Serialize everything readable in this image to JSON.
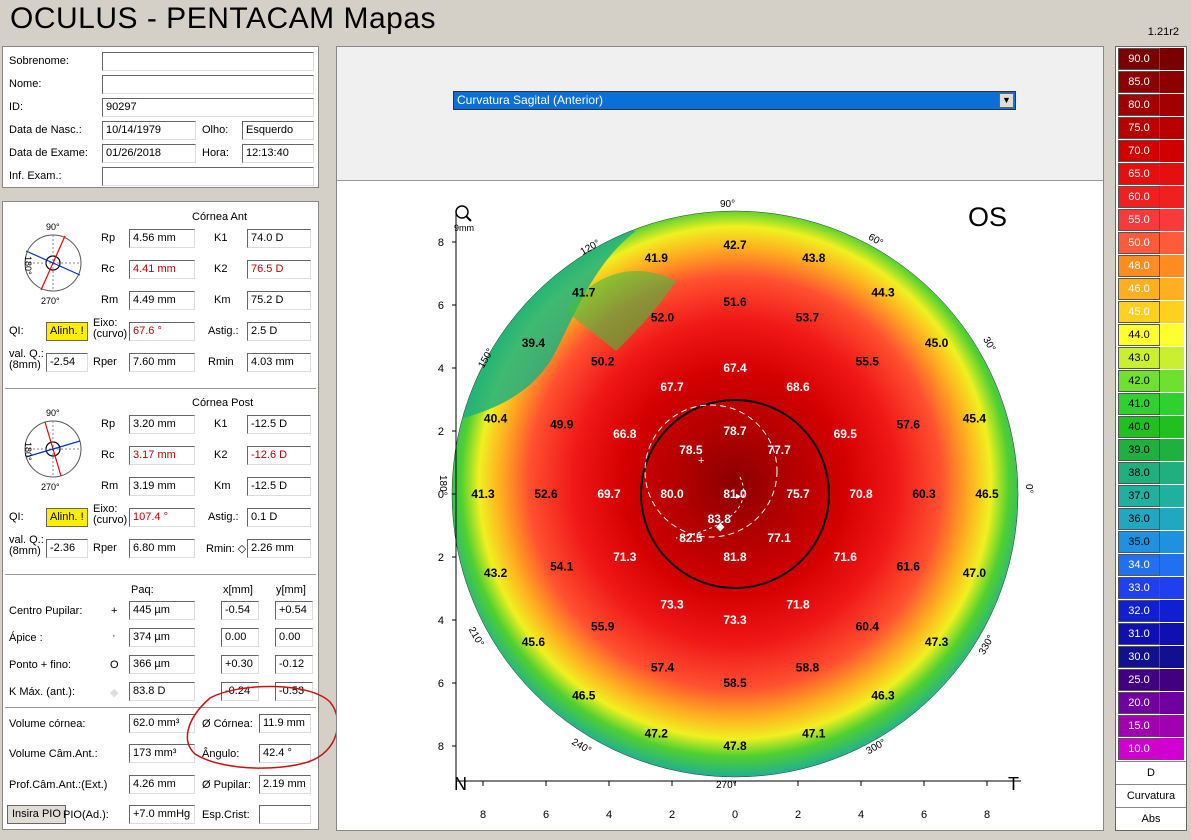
{
  "header": {
    "title": "OCULUS  -  PENTACAM   Mapas",
    "version": "1.21r2"
  },
  "patient": {
    "sobrenome_label": "Sobrenome:",
    "sobrenome": "",
    "nome_label": "Nome:",
    "nome": "",
    "id_label": "ID:",
    "id": "90297",
    "nasc_label": "Data de Nasc.:",
    "nasc": "10/14/1979",
    "olho_label": "Olho:",
    "olho": "Esquerdo",
    "exame_label": "Data de Exame:",
    "exame": "01/26/2018",
    "hora_label": "Hora:",
    "hora": "12:13:40",
    "inf_label": "Inf. Exam.:",
    "inf": ""
  },
  "ant": {
    "title": "Córnea Ant",
    "rp_label": "Rp",
    "rp": "4.56 mm",
    "rc_label": "Rc",
    "rc": "4.41 mm",
    "rm_label": "Rm",
    "rm": "4.49 mm",
    "k1_label": "K1",
    "k1": "74.0 D",
    "k2_label": "K2",
    "k2": "76.5 D",
    "km_label": "Km",
    "km": "75.2 D",
    "ql_label": "QI:",
    "ql": "Alinh. !",
    "eixo_label": "Eixo:\n(curvo)",
    "eixo": "67.6 °",
    "astig_label": "Astig.:",
    "astig": "2.5 D",
    "valq_label": "val. Q.:\n(8mm)",
    "valq": "-2.54",
    "rper_label": "Rper",
    "rper": "7.60 mm",
    "rmin_label": "Rmin",
    "rmin": "4.03 mm",
    "deg90": "90°",
    "deg180": "180°",
    "deg270": "270°"
  },
  "post": {
    "title": "Córnea Post",
    "rp_label": "Rp",
    "rp": "3.20 mm",
    "rc_label": "Rc",
    "rc": "3.17 mm",
    "rm_label": "Rm",
    "rm": "3.19 mm",
    "k1_label": "K1",
    "k1": "-12.5 D",
    "k2_label": "K2",
    "k2": "-12.6 D",
    "km_label": "Km",
    "km": "-12.5 D",
    "ql_label": "QI:",
    "ql": "Alinh. !",
    "eixo_label": "Eixo:\n(curvo)",
    "eixo": "107.4 °",
    "astig_label": "Astig.:",
    "astig": "0.1 D",
    "valq_label": "val. Q.:\n(8mm)",
    "valq": "-2.36",
    "rper_label": "Rper",
    "rper": "6.80 mm",
    "rmin_label": "Rmin: ◇",
    "rmin": "2.26 mm",
    "deg90": "90°",
    "deg180": "180°",
    "deg270": "270°"
  },
  "pachy": {
    "pag_head": "Paq:",
    "x_head": "x[mm]",
    "y_head": "y[mm]",
    "rows": [
      {
        "label": "Centro Pupilar:",
        "sym": "+",
        "paq": "445 µm",
        "x": "-0.54",
        "y": "+0.54"
      },
      {
        "label": "Ápice :",
        "sym": "·",
        "paq": "374 µm",
        "x": "0.00",
        "y": "0.00"
      },
      {
        "label": "Ponto + fino:",
        "sym": "O",
        "paq": "366 µm",
        "x": "+0.30",
        "y": "-0.12"
      },
      {
        "label": "K Máx. (ant.):",
        "sym": "◆",
        "paq": "83.8 D",
        "x": "-0.24",
        "y": "-0.53"
      }
    ]
  },
  "volume": {
    "vol_label": "Volume córnea:",
    "vol": "62.0 mm³",
    "diam_label": "Ø Córnea:",
    "diam": "11.9 mm",
    "cam_label": "Volume Câm.Ant.:",
    "cam": "173 mm³",
    "ang_label": "Ângulo:",
    "ang": "42.4 °",
    "prof_label": "Prof.Câm.Ant.:(Ext.)",
    "prof": "4.26 mm",
    "pup_label": "Ø Pupilar:",
    "pup": "2.19 mm",
    "insira_label": "Insira PIO",
    "pio_label": "PIO(Ad.):",
    "pio": "+7.0 mmHg",
    "esp_label": "Esp.Crist:",
    "esp": ""
  },
  "map": {
    "selector": "Curvatura Sagital (Anterior)",
    "eye": "OS",
    "zoom_label": "9mm",
    "nasal": "N",
    "temporal": "T",
    "deg": {
      "d90": "90°",
      "d270": "270°",
      "d0": "0°",
      "d180": "180°",
      "d120": "120°",
      "d60": "60°",
      "d150": "150°",
      "d30": "30°",
      "d210": "210°",
      "d330": "330°",
      "d240": "240°",
      "d300": "300°"
    },
    "yticks": [
      "8",
      "6",
      "4",
      "2",
      "0",
      "2",
      "4",
      "6",
      "8"
    ],
    "xticks": [
      "8",
      "6",
      "4",
      "2",
      "0",
      "2",
      "4",
      "6",
      "8"
    ],
    "values": [
      {
        "v": "42.7",
        "x": 0,
        "y": 7.9
      },
      {
        "v": "41.9",
        "x": -2.5,
        "y": 7.5
      },
      {
        "v": "43.8",
        "x": 2.5,
        "y": 7.5
      },
      {
        "v": "41.7",
        "x": -4.8,
        "y": 6.4
      },
      {
        "v": "44.3",
        "x": 4.7,
        "y": 6.4
      },
      {
        "v": "51.6",
        "x": 0,
        "y": 6.1
      },
      {
        "v": "52.0",
        "x": -2.3,
        "y": 5.6
      },
      {
        "v": "53.7",
        "x": 2.3,
        "y": 5.6
      },
      {
        "v": "39.4",
        "x": -6.4,
        "y": 4.8
      },
      {
        "v": "45.0",
        "x": 6.4,
        "y": 4.8
      },
      {
        "v": "50.2",
        "x": -4.2,
        "y": 4.2
      },
      {
        "v": "55.5",
        "x": 4.2,
        "y": 4.2
      },
      {
        "v": "67.4",
        "x": 0,
        "y": 4.0
      },
      {
        "v": "67.7",
        "x": -2.0,
        "y": 3.4
      },
      {
        "v": "68.6",
        "x": 2.0,
        "y": 3.4
      },
      {
        "v": "40.4",
        "x": -7.6,
        "y": 2.4
      },
      {
        "v": "45.4",
        "x": 7.6,
        "y": 2.4
      },
      {
        "v": "49.9",
        "x": -5.5,
        "y": 2.2
      },
      {
        "v": "57.6",
        "x": 5.5,
        "y": 2.2
      },
      {
        "v": "66.8",
        "x": -3.5,
        "y": 1.9
      },
      {
        "v": "69.5",
        "x": 3.5,
        "y": 1.9
      },
      {
        "v": "78.7",
        "x": 0,
        "y": 2.0
      },
      {
        "v": "78.5",
        "x": -1.4,
        "y": 1.4
      },
      {
        "v": "77.7",
        "x": 1.4,
        "y": 1.4
      },
      {
        "v": "41.3",
        "x": -8.0,
        "y": 0
      },
      {
        "v": "52.6",
        "x": -6.0,
        "y": 0
      },
      {
        "v": "69.7",
        "x": -4.0,
        "y": 0
      },
      {
        "v": "80.0",
        "x": -2.0,
        "y": 0
      },
      {
        "v": "81.0",
        "x": 0,
        "y": 0
      },
      {
        "v": "75.7",
        "x": 2.0,
        "y": 0
      },
      {
        "v": "70.8",
        "x": 4.0,
        "y": 0
      },
      {
        "v": "60.3",
        "x": 6.0,
        "y": 0
      },
      {
        "v": "46.5",
        "x": 8.0,
        "y": 0
      },
      {
        "v": "83.8",
        "x": -0.5,
        "y": -0.8
      },
      {
        "v": "82.5",
        "x": -1.4,
        "y": -1.4
      },
      {
        "v": "77.1",
        "x": 1.4,
        "y": -1.4
      },
      {
        "v": "71.3",
        "x": -3.5,
        "y": -2.0
      },
      {
        "v": "81.8",
        "x": 0,
        "y": -2.0
      },
      {
        "v": "71.6",
        "x": 3.5,
        "y": -2.0
      },
      {
        "v": "43.2",
        "x": -7.6,
        "y": -2.5
      },
      {
        "v": "54.1",
        "x": -5.5,
        "y": -2.3
      },
      {
        "v": "61.6",
        "x": 5.5,
        "y": -2.3
      },
      {
        "v": "47.0",
        "x": 7.6,
        "y": -2.5
      },
      {
        "v": "73.3",
        "x": -2.0,
        "y": -3.5
      },
      {
        "v": "71.8",
        "x": 2.0,
        "y": -3.5
      },
      {
        "v": "73.3",
        "x": 0,
        "y": -4.0
      },
      {
        "v": "55.9",
        "x": -4.2,
        "y": -4.2
      },
      {
        "v": "60.4",
        "x": 4.2,
        "y": -4.2
      },
      {
        "v": "45.6",
        "x": -6.4,
        "y": -4.7
      },
      {
        "v": "47.3",
        "x": 6.4,
        "y": -4.7
      },
      {
        "v": "57.4",
        "x": -2.3,
        "y": -5.5
      },
      {
        "v": "58.8",
        "x": 2.3,
        "y": -5.5
      },
      {
        "v": "58.5",
        "x": 0,
        "y": -6.0
      },
      {
        "v": "46.5",
        "x": -4.8,
        "y": -6.4
      },
      {
        "v": "46.3",
        "x": 4.7,
        "y": -6.4
      },
      {
        "v": "47.2",
        "x": -2.5,
        "y": -7.6
      },
      {
        "v": "47.1",
        "x": 2.5,
        "y": -7.6
      },
      {
        "v": "47.8",
        "x": 0,
        "y": -8.0
      }
    ]
  },
  "scale": {
    "steps": [
      {
        "v": "90.0",
        "c": "#7a0000"
      },
      {
        "v": "85.0",
        "c": "#8c0000"
      },
      {
        "v": "80.0",
        "c": "#a00000"
      },
      {
        "v": "75.0",
        "c": "#b80000"
      },
      {
        "v": "70.0",
        "c": "#d00000"
      },
      {
        "v": "65.0",
        "c": "#e41010"
      },
      {
        "v": "60.0",
        "c": "#f02020"
      },
      {
        "v": "55.0",
        "c": "#f83a3a"
      },
      {
        "v": "50.0",
        "c": "#ff5a3a"
      },
      {
        "v": "48.0",
        "c": "#ff8c20"
      },
      {
        "v": "46.0",
        "c": "#ffb020"
      },
      {
        "v": "45.0",
        "c": "#ffd020"
      },
      {
        "v": "44.0",
        "c": "#ffff30"
      },
      {
        "v": "43.0",
        "c": "#c8f030"
      },
      {
        "v": "42.0",
        "c": "#70e030"
      },
      {
        "v": "41.0",
        "c": "#30d030"
      },
      {
        "v": "40.0",
        "c": "#20c020"
      },
      {
        "v": "39.0",
        "c": "#20b040"
      },
      {
        "v": "38.0",
        "c": "#20b080"
      },
      {
        "v": "37.0",
        "c": "#20b0a0"
      },
      {
        "v": "36.0",
        "c": "#20a8c0"
      },
      {
        "v": "35.0",
        "c": "#2090e0"
      },
      {
        "v": "34.0",
        "c": "#2070f0"
      },
      {
        "v": "33.0",
        "c": "#2040f0"
      },
      {
        "v": "32.0",
        "c": "#1020d0"
      },
      {
        "v": "31.0",
        "c": "#1010b0"
      },
      {
        "v": "30.0",
        "c": "#101090"
      },
      {
        "v": "25.0",
        "c": "#400080"
      },
      {
        "v": "20.0",
        "c": "#7000a0"
      },
      {
        "v": "15.0",
        "c": "#a000b0"
      },
      {
        "v": "10.0",
        "c": "#d000d0"
      }
    ],
    "unit": "D",
    "type": "Curvatura",
    "mode": "Abs"
  }
}
